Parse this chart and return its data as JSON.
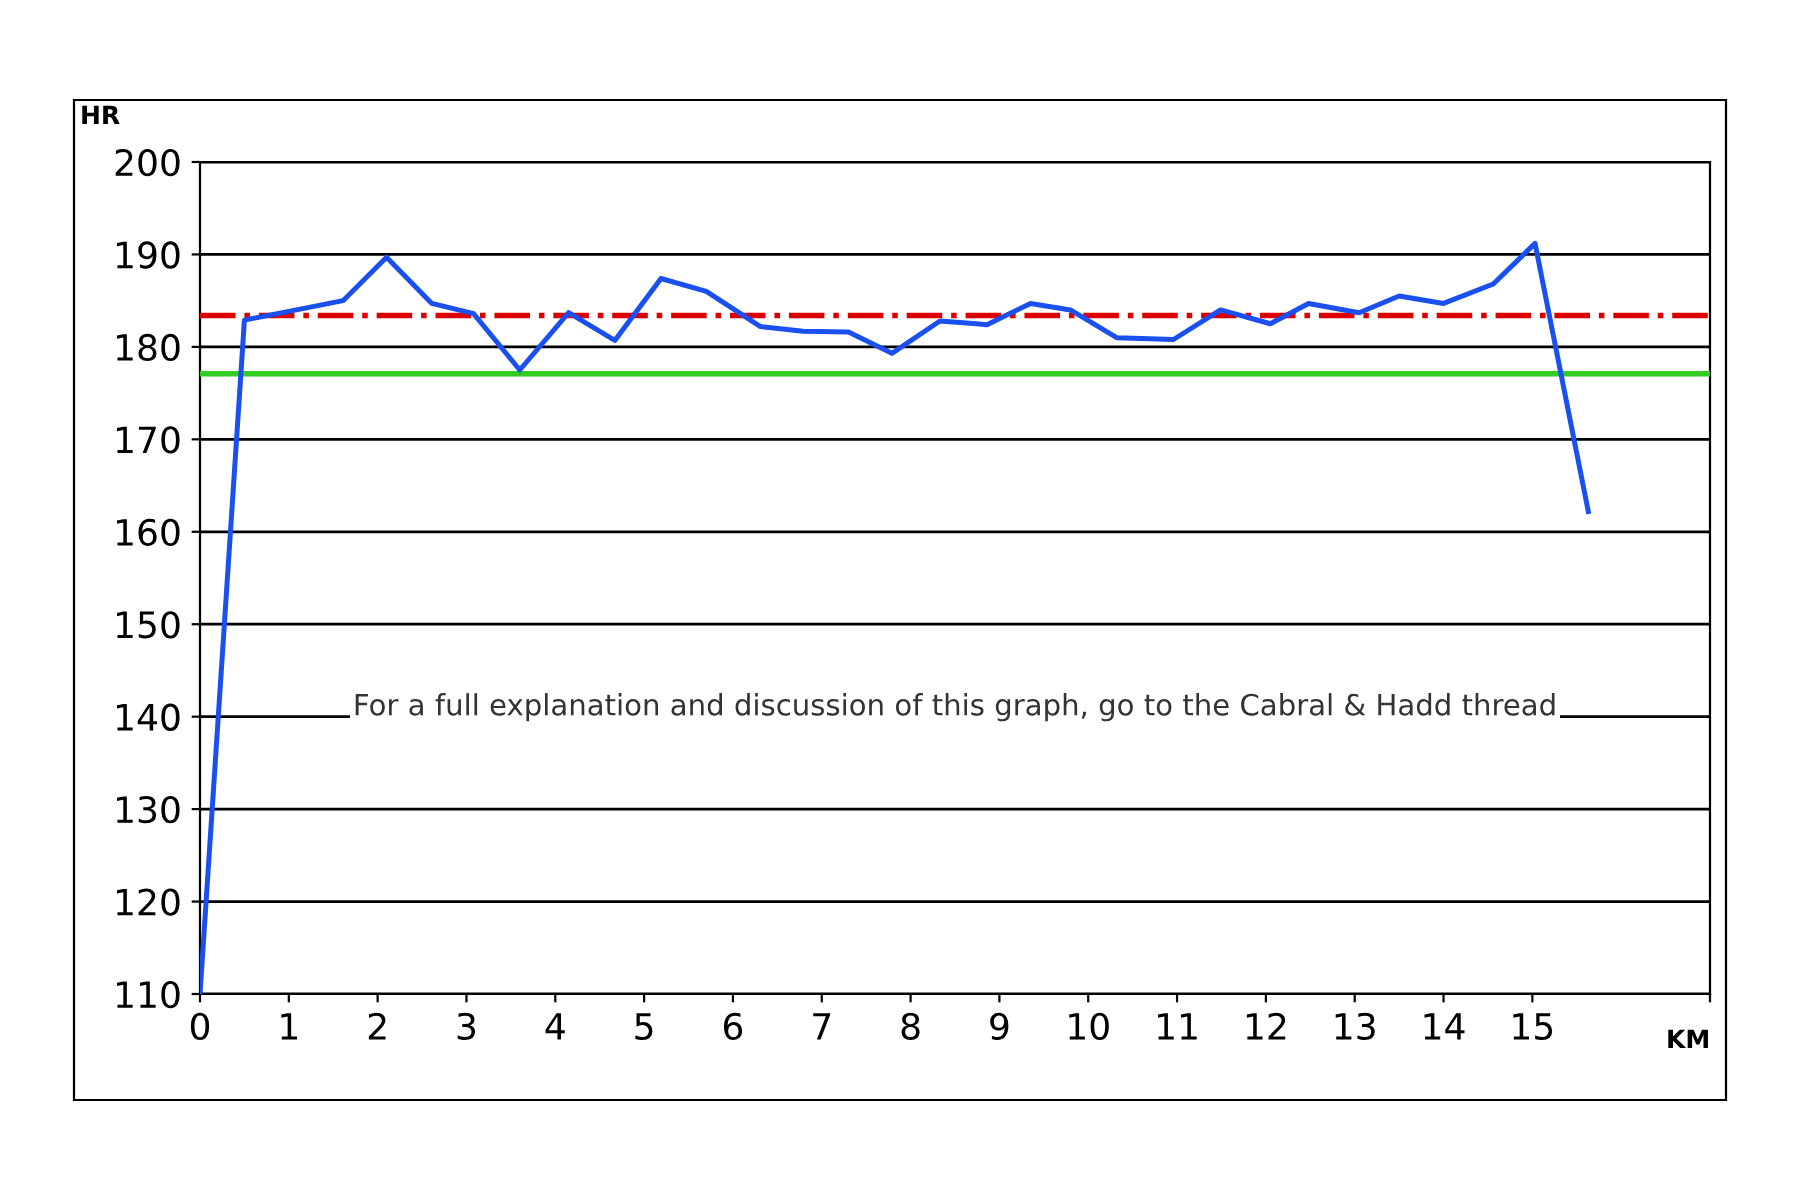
{
  "chart_data": {
    "type": "line",
    "ylabel": "HR",
    "xlabel": "KM",
    "x": [
      0,
      0.5,
      1.61,
      2.1,
      2.61,
      3.08,
      3.6,
      4.15,
      4.67,
      5.19,
      5.7,
      6.31,
      6.79,
      7.3,
      7.79,
      8.33,
      8.74,
      8.86,
      9.35,
      9.8,
      10.32,
      10.96,
      11.49,
      12.05,
      12.48,
      13.05,
      13.5,
      14.0,
      14.56,
      15.03,
      15.63
    ],
    "series": [
      {
        "color": "#1a4ff0",
        "values": [
          110,
          182.9,
          185.0,
          189.7,
          184.7,
          183.6,
          177.5,
          183.7,
          180.7,
          187.4,
          186.0,
          182.2,
          181.7,
          181.6,
          179.3,
          182.8,
          182.5,
          182.4,
          184.7,
          184.0,
          181.0,
          180.8,
          184.0,
          182.5,
          184.7,
          183.7,
          185.5,
          184.7,
          186.8,
          191.2,
          162.2
        ]
      }
    ],
    "xlim": [
      0,
      17
    ],
    "xticks": [
      0,
      1,
      2,
      3,
      4,
      5,
      6,
      7,
      8,
      9,
      10,
      11,
      12,
      13,
      14,
      15,
      {
        "value": 17,
        "label": null
      }
    ],
    "ylim": [
      110,
      200
    ],
    "yticks": [
      110,
      120,
      130,
      140,
      150,
      160,
      170,
      180,
      190,
      200
    ],
    "grid": "y",
    "marker": "none",
    "line_style": "solid",
    "legend": false,
    "ref_lines": [
      {
        "axis": "y",
        "value": 183.4,
        "color": "#dd0000",
        "line_style": "dashdot"
      },
      {
        "axis": "y",
        "value": 177.1,
        "color": "#33cc22",
        "line_style": "solid"
      }
    ],
    "annotations": [
      "For a full explanation and discussion of this graph, go to the Cabral & Hadd thread"
    ]
  }
}
